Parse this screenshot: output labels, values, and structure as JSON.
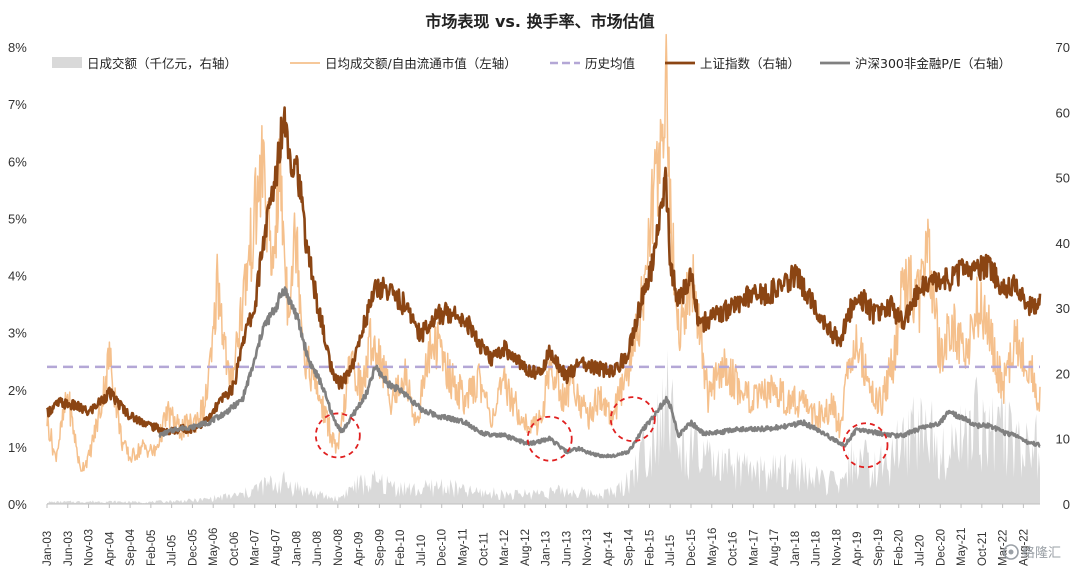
{
  "chart_data": {
    "type": "line",
    "title": "市场表现 vs. 换手率、市场估值",
    "left_axis": {
      "ylim": [
        0,
        8
      ],
      "unit": "%",
      "ticks": [
        "0%",
        "1%",
        "2%",
        "3%",
        "4%",
        "5%",
        "6%",
        "7%",
        "8%"
      ]
    },
    "right_axis": {
      "ylim": [
        0,
        70
      ],
      "ticks": [
        "0",
        "10",
        "20",
        "30",
        "40",
        "50",
        "60",
        "70"
      ]
    },
    "x_ticks": [
      "Jan-03",
      "Jun-03",
      "Nov-03",
      "Apr-04",
      "Sep-04",
      "Feb-05",
      "Jul-05",
      "Dec-05",
      "May-06",
      "Oct-06",
      "Mar-07",
      "Aug-07",
      "Jan-08",
      "Jun-08",
      "Nov-08",
      "Apr-09",
      "Sep-09",
      "Feb-10",
      "Jul-10",
      "Dec-10",
      "May-11",
      "Oct-11",
      "Mar-12",
      "Aug-12",
      "Jan-13",
      "Jun-13",
      "Nov-13",
      "Apr-14",
      "Sep-14",
      "Feb-15",
      "Jul-15",
      "Dec-15",
      "May-16",
      "Oct-16",
      "Mar-17",
      "Aug-17",
      "Jan-18",
      "Jun-18",
      "Nov-18",
      "Apr-19",
      "Sep-19",
      "Feb-20",
      "Jul-20",
      "Dec-20",
      "May-21",
      "Oct-21",
      "Mar-22",
      "Aug-22"
    ],
    "legend_position": "top",
    "grid": false,
    "series": [
      {
        "name": "日成交额（千亿元，右轴）",
        "type": "area",
        "axis": "right",
        "color": "#d9d9d9",
        "x": [
          "2003-01",
          "2004-01",
          "2005-01",
          "2006-01",
          "2006-12",
          "2007-05",
          "2007-10",
          "2008-06",
          "2008-11",
          "2009-03",
          "2009-08",
          "2010-06",
          "2010-12",
          "2011-06",
          "2012-06",
          "2013-01",
          "2013-06",
          "2014-01",
          "2014-06",
          "2014-09",
          "2014-12",
          "2015-03",
          "2015-06",
          "2015-09",
          "2015-12",
          "2016-06",
          "2017-06",
          "2018-01",
          "2018-06",
          "2019-01",
          "2019-03",
          "2019-09",
          "2020-02",
          "2020-07",
          "2020-12",
          "2021-06",
          "2021-09",
          "2022-01",
          "2022-06",
          "2022-12"
        ],
        "values": [
          0.3,
          0.4,
          0.3,
          0.6,
          1.5,
          3.0,
          3.5,
          1.5,
          0.8,
          3.0,
          3.5,
          2.2,
          3.0,
          2.0,
          1.5,
          2.0,
          2.0,
          1.7,
          2.0,
          4.0,
          8.0,
          12.0,
          20.0,
          8.0,
          9.0,
          6.0,
          5.0,
          5.5,
          4.0,
          3.0,
          8.0,
          5.5,
          9.0,
          13.0,
          10.0,
          11.0,
          14.0,
          12.0,
          11.0,
          9.0
        ]
      },
      {
        "name": "日均成交额/自由流通市值（左轴）",
        "type": "line",
        "axis": "left",
        "color": "#f5c08c",
        "x": [
          "2003-01",
          "2003-03",
          "2003-06",
          "2003-09",
          "2003-11",
          "2004-02",
          "2004-04",
          "2004-07",
          "2004-09",
          "2004-12",
          "2005-03",
          "2005-06",
          "2005-09",
          "2005-12",
          "2006-03",
          "2006-05",
          "2006-06",
          "2006-09",
          "2006-12",
          "2007-02",
          "2007-05",
          "2007-07",
          "2007-09",
          "2007-11",
          "2008-01",
          "2008-03",
          "2008-06",
          "2008-09",
          "2008-11",
          "2009-02",
          "2009-05",
          "2009-07",
          "2009-09",
          "2009-12",
          "2010-03",
          "2010-06",
          "2010-09",
          "2010-11",
          "2011-02",
          "2011-06",
          "2011-09",
          "2011-12",
          "2012-03",
          "2012-06",
          "2012-09",
          "2012-12",
          "2013-02",
          "2013-05",
          "2013-08",
          "2013-11",
          "2014-02",
          "2014-05",
          "2014-08",
          "2014-11",
          "2015-01",
          "2015-04",
          "2015-06",
          "2015-07",
          "2015-09",
          "2015-12",
          "2016-01",
          "2016-04",
          "2016-08",
          "2016-12",
          "2017-04",
          "2017-08",
          "2017-12",
          "2018-03",
          "2018-06",
          "2018-10",
          "2018-12",
          "2019-02",
          "2019-04",
          "2019-07",
          "2019-10",
          "2020-01",
          "2020-03",
          "2020-07",
          "2020-09",
          "2020-12",
          "2021-03",
          "2021-06",
          "2021-09",
          "2021-12",
          "2022-03",
          "2022-06",
          "2022-09",
          "2022-12"
        ],
        "values": [
          1.5,
          0.8,
          1.9,
          0.6,
          0.8,
          1.7,
          2.6,
          1.1,
          0.8,
          1.0,
          0.9,
          1.6,
          1.3,
          1.4,
          1.7,
          2.8,
          4.0,
          2.0,
          3.5,
          4.5,
          6.0,
          4.0,
          5.8,
          3.5,
          4.8,
          2.6,
          2.0,
          1.3,
          0.9,
          2.5,
          2.0,
          2.9,
          2.6,
          1.8,
          2.3,
          1.4,
          2.7,
          2.8,
          2.2,
          1.8,
          2.2,
          1.5,
          2.1,
          1.7,
          1.3,
          1.5,
          2.4,
          1.9,
          2.1,
          1.5,
          1.9,
          1.5,
          2.1,
          3.0,
          4.0,
          6.0,
          7.5,
          5.0,
          3.0,
          3.8,
          3.8,
          1.9,
          2.4,
          2.0,
          1.8,
          2.0,
          1.8,
          1.8,
          1.5,
          1.7,
          1.3,
          2.5,
          3.0,
          2.0,
          1.8,
          2.6,
          4.0,
          3.5,
          4.5,
          2.5,
          3.2,
          2.5,
          3.5,
          3.0,
          2.0,
          2.9,
          2.5,
          1.8
        ]
      },
      {
        "name": "历史均值",
        "type": "line",
        "axis": "left",
        "color": "#b4a7d6",
        "dashed": true,
        "x": [
          "2003-01",
          "2022-12"
        ],
        "values": [
          2.4,
          2.4
        ]
      },
      {
        "name": "上证指数（右轴）",
        "type": "line",
        "axis": "right",
        "color": "#8b4513",
        "x": [
          "2003-01",
          "2003-04",
          "2003-08",
          "2003-11",
          "2004-04",
          "2004-09",
          "2005-02",
          "2005-06",
          "2005-09",
          "2005-12",
          "2006-04",
          "2006-07",
          "2006-10",
          "2006-12",
          "2007-03",
          "2007-05",
          "2007-08",
          "2007-10",
          "2007-12",
          "2008-01",
          "2008-03",
          "2008-05",
          "2008-08",
          "2008-10",
          "2008-12",
          "2009-03",
          "2009-05",
          "2009-08",
          "2009-11",
          "2010-03",
          "2010-07",
          "2010-11",
          "2011-03",
          "2011-06",
          "2011-09",
          "2011-12",
          "2012-03",
          "2012-06",
          "2012-09",
          "2012-12",
          "2013-02",
          "2013-06",
          "2013-09",
          "2013-12",
          "2014-03",
          "2014-06",
          "2014-09",
          "2014-12",
          "2015-03",
          "2015-06",
          "2015-07",
          "2015-09",
          "2015-12",
          "2016-02",
          "2016-06",
          "2016-10",
          "2017-02",
          "2017-06",
          "2017-10",
          "2018-01",
          "2018-05",
          "2018-10",
          "2018-12",
          "2019-04",
          "2019-08",
          "2019-12",
          "2020-03",
          "2020-07",
          "2020-12",
          "2021-03",
          "2021-06",
          "2021-09",
          "2021-12",
          "2022-03",
          "2022-06",
          "2022-09",
          "2022-12"
        ],
        "values": [
          14.0,
          15.5,
          15.0,
          14.0,
          17.0,
          13.5,
          12.0,
          11.0,
          11.5,
          11.5,
          13.0,
          16.0,
          18.0,
          25.0,
          30.0,
          40.0,
          50.0,
          60.0,
          52.0,
          53.0,
          42.0,
          34.0,
          25.0,
          19.0,
          18.5,
          22.0,
          27.0,
          33.0,
          33.0,
          30.5,
          26.0,
          29.0,
          29.5,
          28.0,
          24.5,
          22.0,
          24.0,
          22.0,
          20.5,
          20.0,
          23.5,
          19.5,
          21.5,
          21.0,
          20.5,
          20.5,
          23.5,
          31.0,
          37.0,
          50.0,
          37.0,
          31.0,
          35.0,
          27.5,
          29.0,
          30.0,
          32.0,
          32.0,
          33.5,
          35.0,
          31.5,
          26.0,
          25.5,
          32.5,
          29.0,
          30.5,
          27.5,
          33.0,
          34.0,
          34.5,
          36.0,
          36.0,
          36.5,
          33.0,
          33.5,
          30.5,
          31.0
        ]
      },
      {
        "name": "沪深300非金融P/E（右轴）",
        "type": "line",
        "axis": "right",
        "color": "#808080",
        "x": [
          "2005-04",
          "2005-08",
          "2005-12",
          "2006-04",
          "2006-08",
          "2006-12",
          "2007-03",
          "2007-05",
          "2007-08",
          "2007-10",
          "2008-01",
          "2008-04",
          "2008-07",
          "2008-10",
          "2008-12",
          "2009-03",
          "2009-06",
          "2009-08",
          "2009-11",
          "2010-03",
          "2010-07",
          "2010-11",
          "2011-03",
          "2011-06",
          "2011-09",
          "2011-12",
          "2012-03",
          "2012-06",
          "2012-09",
          "2013-02",
          "2013-06",
          "2013-09",
          "2013-12",
          "2014-03",
          "2014-06",
          "2014-09",
          "2014-12",
          "2015-03",
          "2015-06",
          "2015-07",
          "2015-09",
          "2015-12",
          "2016-03",
          "2016-07",
          "2016-12",
          "2017-06",
          "2017-12",
          "2018-03",
          "2018-06",
          "2018-10",
          "2019-01",
          "2019-04",
          "2019-08",
          "2019-12",
          "2020-03",
          "2020-07",
          "2020-12",
          "2021-02",
          "2021-06",
          "2021-09",
          "2021-12",
          "2022-03",
          "2022-06",
          "2022-09",
          "2022-12"
        ],
        "values": [
          10.5,
          11.5,
          11.8,
          12.5,
          14.0,
          16.0,
          22.0,
          27.0,
          30.0,
          33.0,
          29.0,
          22.0,
          18.5,
          13.0,
          11.0,
          14.0,
          17.0,
          21.0,
          18.5,
          17.0,
          14.5,
          13.5,
          13.0,
          12.5,
          11.0,
          10.5,
          10.5,
          9.8,
          9.2,
          10.0,
          8.0,
          8.5,
          7.7,
          7.3,
          7.5,
          8.0,
          11.0,
          13.5,
          16.0,
          15.0,
          10.5,
          12.5,
          10.8,
          11.0,
          11.5,
          11.5,
          12.0,
          12.5,
          11.5,
          10.0,
          9.0,
          11.5,
          11.0,
          10.5,
          10.5,
          11.5,
          12.5,
          14.0,
          13.0,
          12.0,
          12.0,
          11.0,
          10.5,
          9.5,
          9.0
        ]
      }
    ],
    "annotations": [
      {
        "shape": "dashed-circle",
        "color": "#e02020",
        "x": "2008-11",
        "y_right": 10.5
      },
      {
        "shape": "dashed-circle",
        "color": "#e02020",
        "x": "2013-02",
        "y_right": 10.0
      },
      {
        "shape": "dashed-circle",
        "color": "#e02020",
        "x": "2014-10",
        "y_right": 13.0
      },
      {
        "shape": "dashed-circle",
        "color": "#e02020",
        "x": "2019-06",
        "y_right": 9.0
      }
    ]
  },
  "watermark": {
    "icon": "gelonghui-logo-icon",
    "text": "格隆汇"
  }
}
